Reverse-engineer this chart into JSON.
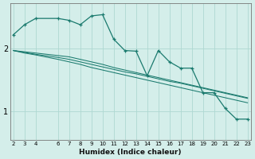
{
  "xlabel": "Humidex (Indice chaleur)",
  "background_color": "#d4eeea",
  "grid_color": "#aed8d2",
  "line_color": "#1a7a6e",
  "x_humidex": [
    2,
    3,
    4,
    6,
    7,
    8,
    9,
    10,
    11,
    12,
    13,
    14,
    15,
    16,
    17,
    18,
    19,
    20,
    21,
    22,
    23
  ],
  "y_main": [
    2.22,
    2.38,
    2.48,
    2.48,
    2.45,
    2.38,
    2.52,
    2.54,
    2.15,
    1.97,
    1.96,
    1.57,
    1.97,
    1.79,
    1.69,
    1.69,
    1.3,
    1.3,
    1.05,
    0.88,
    0.88
  ],
  "y_line1": [
    1.97,
    1.95,
    1.93,
    1.89,
    1.87,
    1.83,
    1.79,
    1.75,
    1.7,
    1.66,
    1.62,
    1.58,
    1.54,
    1.5,
    1.46,
    1.42,
    1.38,
    1.34,
    1.3,
    1.26,
    1.22
  ],
  "y_line2": [
    1.97,
    1.94,
    1.91,
    1.86,
    1.83,
    1.79,
    1.75,
    1.71,
    1.67,
    1.63,
    1.6,
    1.56,
    1.52,
    1.48,
    1.45,
    1.41,
    1.37,
    1.33,
    1.29,
    1.25,
    1.21
  ],
  "y_line3": [
    1.97,
    1.93,
    1.9,
    1.83,
    1.79,
    1.75,
    1.7,
    1.66,
    1.62,
    1.58,
    1.54,
    1.5,
    1.46,
    1.42,
    1.38,
    1.34,
    1.3,
    1.26,
    1.22,
    1.18,
    1.14
  ],
  "xtick_labels": [
    "2",
    "3",
    "4",
    "6",
    "7",
    "8",
    "9",
    "10",
    "11",
    "12",
    "13",
    "14",
    "15",
    "16",
    "17",
    "18",
    "19",
    "20",
    "21",
    "22",
    "23"
  ],
  "ylim": [
    0.55,
    2.72
  ],
  "yticks": [
    1.0,
    2.0
  ],
  "xlim": [
    1.7,
    23.3
  ]
}
